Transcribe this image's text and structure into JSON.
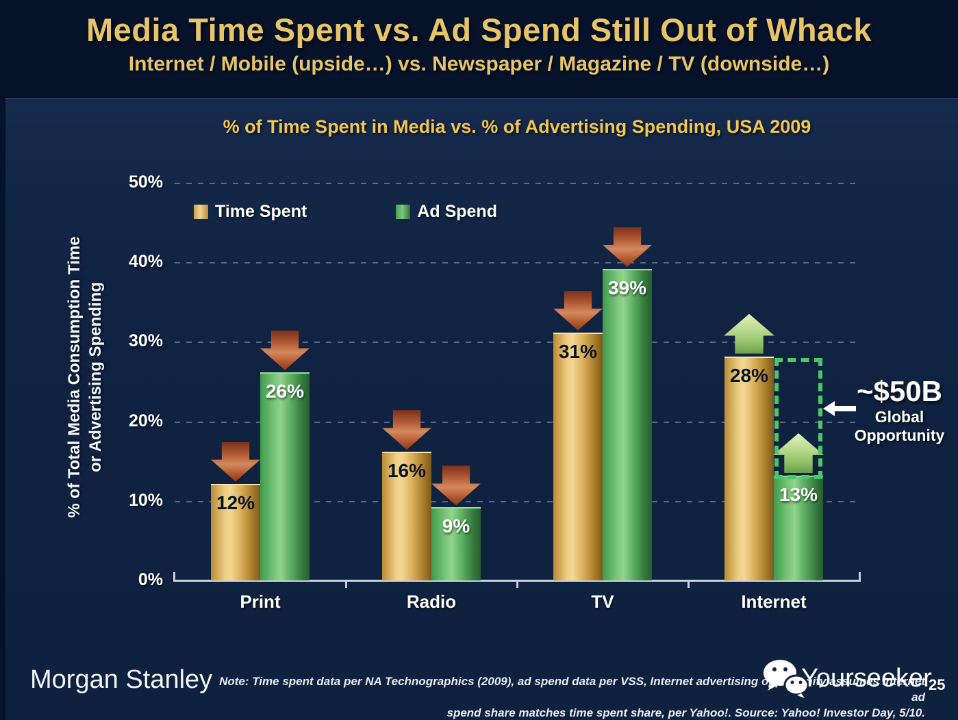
{
  "slide": {
    "title": "Media Time Spent vs. Ad Spend Still Out of Whack",
    "subtitle": "Internet / Mobile (upside…) vs. Newspaper / Magazine / TV (downside…)"
  },
  "chart_data": {
    "type": "bar",
    "title": "% of Time Spent in Media vs. % of Advertising Spending, USA 2009",
    "categories": [
      "Print",
      "Radio",
      "TV",
      "Internet"
    ],
    "series": [
      {
        "name": "Time Spent",
        "color": "#d8a93f",
        "values": [
          12,
          16,
          31,
          28
        ],
        "labels": [
          "12%",
          "16%",
          "31%",
          "28%"
        ],
        "trend": [
          "down",
          "down",
          "down",
          "up"
        ]
      },
      {
        "name": "Ad Spend",
        "color": "#4aa35a",
        "values": [
          26,
          9,
          39,
          13
        ],
        "labels": [
          "26%",
          "9%",
          "39%",
          "13%"
        ],
        "trend": [
          "down",
          "down",
          "down",
          "up"
        ]
      }
    ],
    "xlabel": "",
    "ylabel_line1": "% of Total Media Consumption Time",
    "ylabel_line2": "or Advertising Spending",
    "ylim": [
      0,
      50
    ],
    "yticks": [
      "0%",
      "10%",
      "20%",
      "30%",
      "40%",
      "50%"
    ],
    "grid": "dashed horizontal gridlines at 10% steps",
    "legend_position": "top-left inside plot",
    "gap_annotation": {
      "category": "Internet",
      "series": "Ad Spend",
      "lower_value": 13,
      "upper_value": 28,
      "style": "green dotted rectangle"
    }
  },
  "annotation": {
    "value": "~$50B",
    "label_line1": "Global",
    "label_line2": "Opportunity"
  },
  "icons": {
    "down_arrow": "red-down-block-arrow",
    "up_arrow": "green-up-block-arrow",
    "left_arrow": "white-left-arrow",
    "watermark_icon": "wechat-chat-bubbles"
  },
  "colors": {
    "header_bg": "#05122a",
    "body_bg": "#102342",
    "title_gold": "#e8c469",
    "chart_title_gold": "#f2c64f",
    "bar_gold": "#d8a93f",
    "bar_green": "#4aa35a",
    "arrow_down_red": "#c06a42",
    "arrow_up_green": "#a6cf78",
    "dotted_green": "#4cc767",
    "text_white": "#ffffff"
  },
  "footer": {
    "brand": "Morgan Stanley",
    "note_line1": "Note: Time spent data per NA Technographics (2009), ad spend data per VSS, Internet advertising opportunity assumes Internet ad",
    "note_line2": "spend share matches time spent share, per Yahoo!. Source: Yahoo! Investor Day, 5/10.",
    "watermark": "Yourseeker",
    "page_number": "25"
  }
}
